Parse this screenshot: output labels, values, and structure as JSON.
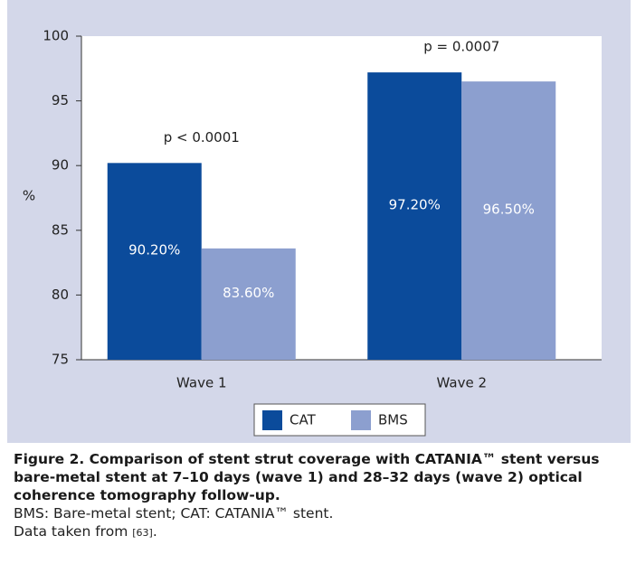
{
  "chart_data": {
    "type": "bar",
    "categories": [
      "Wave 1",
      "Wave 2"
    ],
    "series": [
      {
        "name": "CAT",
        "color": "#0b4b9b",
        "values": [
          90.2,
          97.2
        ],
        "value_labels": [
          "90.20%",
          "97.20%"
        ]
      },
      {
        "name": "BMS",
        "color": "#8c9fcf",
        "values": [
          83.6,
          96.5
        ],
        "value_labels": [
          "83.60%",
          "96.50%"
        ]
      }
    ],
    "ylabel": "%",
    "ylim": [
      75,
      100
    ],
    "yticks": [
      75,
      80,
      85,
      90,
      95,
      100
    ],
    "annotations": [
      "p < 0.0001",
      "p = 0.0007"
    ],
    "legend": "bottom"
  },
  "caption": {
    "title": "Figure 2. Comparison of stent strut coverage with CATANIA™ stent versus bare-metal stent at 7–10 days (wave 1) and 28–32 days (wave 2) optical coherence tomography follow-up.",
    "notes": [
      "BMS: Bare-metal stent; CAT: CATANIA™ stent."
    ],
    "source": [
      "Data taken from",
      "[63]",
      "."
    ]
  }
}
